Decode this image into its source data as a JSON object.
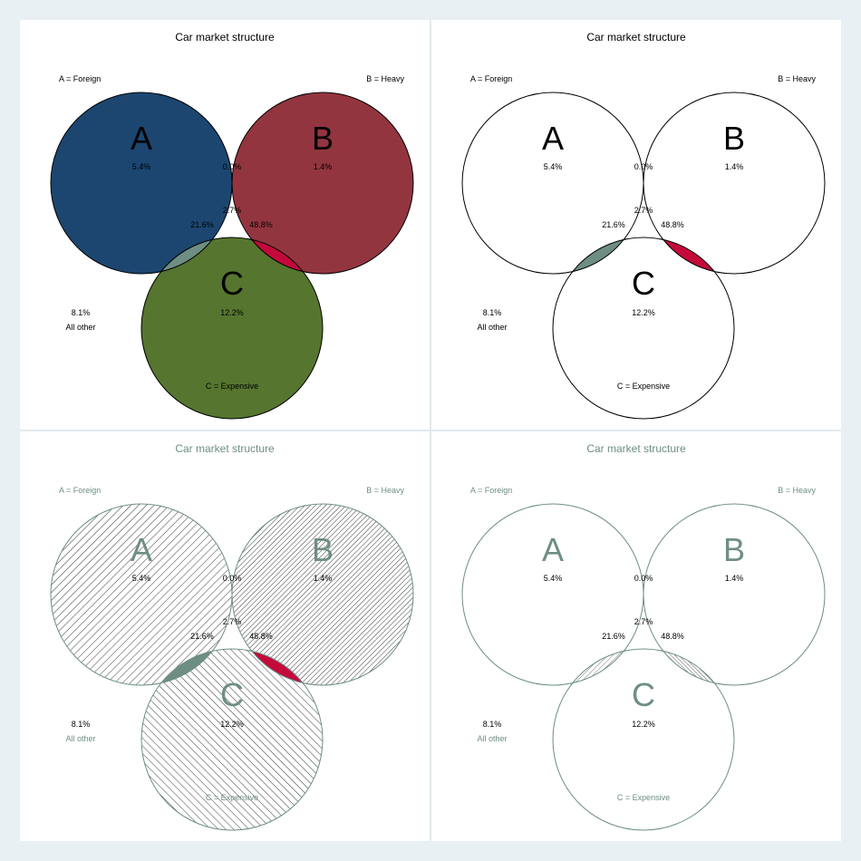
{
  "colors": {
    "page_bg": "#e9f0f3",
    "panel_bg": "#ffffff",
    "a_only": "#1c4670",
    "b_only": "#93353f",
    "c_only": "#56752f",
    "ab": "#e67d00",
    "ac": "#6e8e84",
    "bc": "#c5093b",
    "abc": "#9a8fd0",
    "muted_text": "#6e8e84"
  },
  "panels": [
    {
      "title": "Car market structure",
      "labels": {
        "a": "A = Foreign",
        "b": "B = Heavy",
        "c": "C = Expensive",
        "other_value": "8.1%",
        "other_label": "All other"
      },
      "letters": {
        "a": "A",
        "b": "B",
        "c": "C"
      },
      "values": {
        "a_only": "5.4%",
        "b_only": "1.4%",
        "c_only": "12.2%",
        "ab": "0.0%",
        "ac": "21.6%",
        "bc": "48.8%",
        "abc": "2.7%"
      }
    },
    {
      "title": "Car market structure",
      "labels": {
        "a": "A = Foreign",
        "b": "B = Heavy",
        "c": "C = Expensive",
        "other_value": "8.1%",
        "other_label": "All other"
      },
      "letters": {
        "a": "A",
        "b": "B",
        "c": "C"
      },
      "values": {
        "a_only": "5.4%",
        "b_only": "1.4%",
        "c_only": "12.2%",
        "ab": "0.0%",
        "ac": "21.6%",
        "bc": "48.8%",
        "abc": "2.7%"
      }
    },
    {
      "title": "Car market structure",
      "labels": {
        "a": "A = Foreign",
        "b": "B = Heavy",
        "c": "C = Expensive",
        "other_value": "8.1%",
        "other_label": "All other"
      },
      "letters": {
        "a": "A",
        "b": "B",
        "c": "C"
      },
      "values": {
        "a_only": "5.4%",
        "b_only": "1.4%",
        "c_only": "12.2%",
        "ab": "0.0%",
        "ac": "21.6%",
        "bc": "48.8%",
        "abc": "2.7%"
      }
    },
    {
      "title": "Car market structure",
      "labels": {
        "a": "A = Foreign",
        "b": "B = Heavy",
        "c": "C = Expensive",
        "other_value": "8.1%",
        "other_label": "All other"
      },
      "letters": {
        "a": "A",
        "b": "B",
        "c": "C"
      },
      "values": {
        "a_only": "5.4%",
        "b_only": "1.4%",
        "c_only": "12.2%",
        "ab": "0.0%",
        "ac": "21.6%",
        "bc": "48.8%",
        "abc": "2.7%"
      }
    }
  ]
}
